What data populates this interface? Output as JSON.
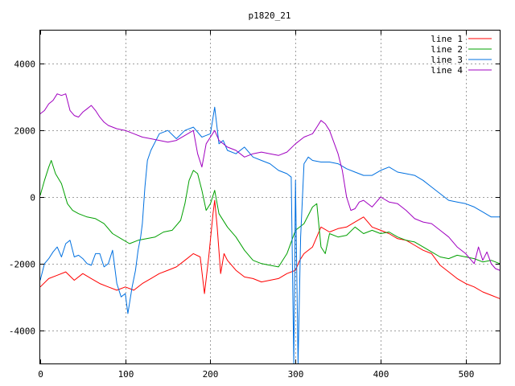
{
  "chart_data": {
    "type": "line",
    "title": "p1820_21",
    "xlabel": "",
    "ylabel": "",
    "xlim": [
      0,
      540
    ],
    "ylim": [
      -5000,
      5000
    ],
    "xticks": [
      0,
      100,
      200,
      300,
      400,
      500
    ],
    "yticks": [
      -4000,
      -2000,
      0,
      2000,
      4000
    ],
    "x_tick_labels": [
      "0",
      "100",
      "200",
      "300",
      "400",
      "500"
    ],
    "y_tick_labels": [
      "-4000",
      "-2000",
      "0",
      "2000",
      "4000"
    ],
    "grid": true,
    "legend_position": "top-right",
    "series": [
      {
        "name": "line 1",
        "color": "#ff0000",
        "points": [
          [
            0,
            -2700
          ],
          [
            10,
            -2450
          ],
          [
            20,
            -2350
          ],
          [
            30,
            -2250
          ],
          [
            40,
            -2500
          ],
          [
            50,
            -2300
          ],
          [
            60,
            -2450
          ],
          [
            70,
            -2600
          ],
          [
            80,
            -2700
          ],
          [
            90,
            -2800
          ],
          [
            100,
            -2700
          ],
          [
            110,
            -2800
          ],
          [
            120,
            -2600
          ],
          [
            130,
            -2450
          ],
          [
            140,
            -2300
          ],
          [
            150,
            -2200
          ],
          [
            160,
            -2100
          ],
          [
            170,
            -1900
          ],
          [
            180,
            -1700
          ],
          [
            188,
            -1800
          ],
          [
            193,
            -2900
          ],
          [
            198,
            -1800
          ],
          [
            203,
            -500
          ],
          [
            205,
            -100
          ],
          [
            208,
            -900
          ],
          [
            212,
            -2300
          ],
          [
            216,
            -1700
          ],
          [
            220,
            -1900
          ],
          [
            230,
            -2200
          ],
          [
            240,
            -2400
          ],
          [
            250,
            -2450
          ],
          [
            260,
            -2550
          ],
          [
            270,
            -2500
          ],
          [
            280,
            -2450
          ],
          [
            290,
            -2300
          ],
          [
            300,
            -2200
          ],
          [
            305,
            -1900
          ],
          [
            310,
            -1700
          ],
          [
            320,
            -1500
          ],
          [
            330,
            -900
          ],
          [
            340,
            -1050
          ],
          [
            350,
            -950
          ],
          [
            360,
            -900
          ],
          [
            370,
            -750
          ],
          [
            380,
            -600
          ],
          [
            390,
            -900
          ],
          [
            400,
            -1000
          ],
          [
            410,
            -1100
          ],
          [
            420,
            -1250
          ],
          [
            430,
            -1300
          ],
          [
            440,
            -1450
          ],
          [
            450,
            -1600
          ],
          [
            460,
            -1700
          ],
          [
            470,
            -2050
          ],
          [
            480,
            -2250
          ],
          [
            490,
            -2450
          ],
          [
            500,
            -2600
          ],
          [
            510,
            -2700
          ],
          [
            520,
            -2850
          ],
          [
            530,
            -2950
          ],
          [
            540,
            -3050
          ]
        ]
      },
      {
        "name": "line 2",
        "color": "#00a000",
        "points": [
          [
            0,
            50
          ],
          [
            5,
            500
          ],
          [
            10,
            900
          ],
          [
            13,
            1100
          ],
          [
            18,
            700
          ],
          [
            25,
            400
          ],
          [
            32,
            -200
          ],
          [
            38,
            -400
          ],
          [
            45,
            -500
          ],
          [
            55,
            -600
          ],
          [
            65,
            -650
          ],
          [
            75,
            -800
          ],
          [
            85,
            -1100
          ],
          [
            95,
            -1250
          ],
          [
            105,
            -1400
          ],
          [
            115,
            -1300
          ],
          [
            125,
            -1250
          ],
          [
            135,
            -1200
          ],
          [
            145,
            -1050
          ],
          [
            155,
            -1000
          ],
          [
            165,
            -700
          ],
          [
            170,
            -200
          ],
          [
            175,
            500
          ],
          [
            180,
            800
          ],
          [
            185,
            700
          ],
          [
            190,
            200
          ],
          [
            195,
            -400
          ],
          [
            200,
            -200
          ],
          [
            205,
            200
          ],
          [
            210,
            -500
          ],
          [
            220,
            -900
          ],
          [
            230,
            -1200
          ],
          [
            240,
            -1600
          ],
          [
            250,
            -1900
          ],
          [
            260,
            -2000
          ],
          [
            270,
            -2050
          ],
          [
            280,
            -2100
          ],
          [
            290,
            -1700
          ],
          [
            300,
            -1000
          ],
          [
            310,
            -800
          ],
          [
            320,
            -300
          ],
          [
            325,
            -200
          ],
          [
            330,
            -1500
          ],
          [
            335,
            -1700
          ],
          [
            340,
            -1100
          ],
          [
            350,
            -1200
          ],
          [
            360,
            -1150
          ],
          [
            370,
            -900
          ],
          [
            380,
            -1100
          ],
          [
            390,
            -1000
          ],
          [
            400,
            -1100
          ],
          [
            410,
            -1050
          ],
          [
            420,
            -1200
          ],
          [
            430,
            -1300
          ],
          [
            440,
            -1350
          ],
          [
            450,
            -1500
          ],
          [
            460,
            -1650
          ],
          [
            470,
            -1800
          ],
          [
            480,
            -1850
          ],
          [
            490,
            -1750
          ],
          [
            500,
            -1800
          ],
          [
            510,
            -1850
          ],
          [
            520,
            -1950
          ],
          [
            530,
            -1900
          ],
          [
            540,
            -2000
          ]
        ]
      },
      {
        "name": "line 3",
        "color": "#0070e0",
        "points": [
          [
            0,
            -2500
          ],
          [
            5,
            -2000
          ],
          [
            10,
            -1850
          ],
          [
            15,
            -1650
          ],
          [
            20,
            -1500
          ],
          [
            25,
            -1800
          ],
          [
            30,
            -1400
          ],
          [
            35,
            -1300
          ],
          [
            40,
            -1800
          ],
          [
            45,
            -1750
          ],
          [
            50,
            -1850
          ],
          [
            55,
            -2000
          ],
          [
            60,
            -2050
          ],
          [
            65,
            -1700
          ],
          [
            70,
            -1700
          ],
          [
            75,
            -2100
          ],
          [
            80,
            -2000
          ],
          [
            85,
            -1600
          ],
          [
            90,
            -2600
          ],
          [
            95,
            -3000
          ],
          [
            100,
            -2900
          ],
          [
            103,
            -3500
          ],
          [
            108,
            -2700
          ],
          [
            112,
            -2200
          ],
          [
            115,
            -1600
          ],
          [
            118,
            -1200
          ],
          [
            120,
            -800
          ],
          [
            123,
            300
          ],
          [
            126,
            1100
          ],
          [
            130,
            1400
          ],
          [
            140,
            1900
          ],
          [
            150,
            2000
          ],
          [
            160,
            1750
          ],
          [
            170,
            2000
          ],
          [
            180,
            2100
          ],
          [
            190,
            1800
          ],
          [
            200,
            1900
          ],
          [
            205,
            2700
          ],
          [
            210,
            1600
          ],
          [
            215,
            1700
          ],
          [
            220,
            1400
          ],
          [
            230,
            1300
          ],
          [
            240,
            1500
          ],
          [
            250,
            1200
          ],
          [
            260,
            1100
          ],
          [
            270,
            1000
          ],
          [
            280,
            800
          ],
          [
            290,
            700
          ],
          [
            295,
            600
          ],
          [
            298,
            -5000
          ],
          [
            300,
            500
          ],
          [
            303,
            -5000
          ],
          [
            306,
            -1200
          ],
          [
            310,
            1000
          ],
          [
            315,
            1200
          ],
          [
            320,
            1100
          ],
          [
            330,
            1050
          ],
          [
            340,
            1050
          ],
          [
            350,
            1000
          ],
          [
            360,
            850
          ],
          [
            370,
            750
          ],
          [
            380,
            650
          ],
          [
            390,
            650
          ],
          [
            400,
            800
          ],
          [
            410,
            900
          ],
          [
            420,
            750
          ],
          [
            430,
            700
          ],
          [
            440,
            650
          ],
          [
            450,
            500
          ],
          [
            460,
            300
          ],
          [
            470,
            100
          ],
          [
            480,
            -100
          ],
          [
            490,
            -150
          ],
          [
            500,
            -200
          ],
          [
            510,
            -300
          ],
          [
            520,
            -450
          ],
          [
            530,
            -600
          ],
          [
            540,
            -600
          ]
        ]
      },
      {
        "name": "line 4",
        "color": "#a000c0",
        "points": [
          [
            0,
            2500
          ],
          [
            5,
            2600
          ],
          [
            10,
            2800
          ],
          [
            15,
            2900
          ],
          [
            20,
            3100
          ],
          [
            25,
            3050
          ],
          [
            30,
            3100
          ],
          [
            35,
            2600
          ],
          [
            40,
            2450
          ],
          [
            45,
            2400
          ],
          [
            50,
            2550
          ],
          [
            55,
            2650
          ],
          [
            60,
            2750
          ],
          [
            65,
            2600
          ],
          [
            70,
            2400
          ],
          [
            75,
            2250
          ],
          [
            80,
            2150
          ],
          [
            90,
            2050
          ],
          [
            100,
            2000
          ],
          [
            110,
            1900
          ],
          [
            120,
            1800
          ],
          [
            130,
            1750
          ],
          [
            140,
            1700
          ],
          [
            150,
            1650
          ],
          [
            160,
            1700
          ],
          [
            170,
            1850
          ],
          [
            180,
            2000
          ],
          [
            185,
            1300
          ],
          [
            190,
            900
          ],
          [
            195,
            1600
          ],
          [
            200,
            1800
          ],
          [
            205,
            2000
          ],
          [
            210,
            1700
          ],
          [
            220,
            1500
          ],
          [
            230,
            1400
          ],
          [
            240,
            1200
          ],
          [
            250,
            1300
          ],
          [
            260,
            1350
          ],
          [
            270,
            1300
          ],
          [
            280,
            1250
          ],
          [
            290,
            1350
          ],
          [
            300,
            1600
          ],
          [
            310,
            1800
          ],
          [
            320,
            1900
          ],
          [
            325,
            2100
          ],
          [
            330,
            2300
          ],
          [
            335,
            2200
          ],
          [
            340,
            2000
          ],
          [
            345,
            1650
          ],
          [
            350,
            1300
          ],
          [
            355,
            800
          ],
          [
            360,
            0
          ],
          [
            365,
            -400
          ],
          [
            370,
            -350
          ],
          [
            375,
            -150
          ],
          [
            380,
            -100
          ],
          [
            390,
            -300
          ],
          [
            400,
            0
          ],
          [
            410,
            -150
          ],
          [
            420,
            -200
          ],
          [
            430,
            -400
          ],
          [
            440,
            -650
          ],
          [
            450,
            -750
          ],
          [
            460,
            -800
          ],
          [
            470,
            -1000
          ],
          [
            480,
            -1200
          ],
          [
            490,
            -1500
          ],
          [
            500,
            -1700
          ],
          [
            510,
            -2000
          ],
          [
            515,
            -1500
          ],
          [
            520,
            -1900
          ],
          [
            525,
            -1650
          ],
          [
            530,
            -2000
          ],
          [
            535,
            -2150
          ],
          [
            540,
            -2200
          ]
        ]
      }
    ]
  }
}
